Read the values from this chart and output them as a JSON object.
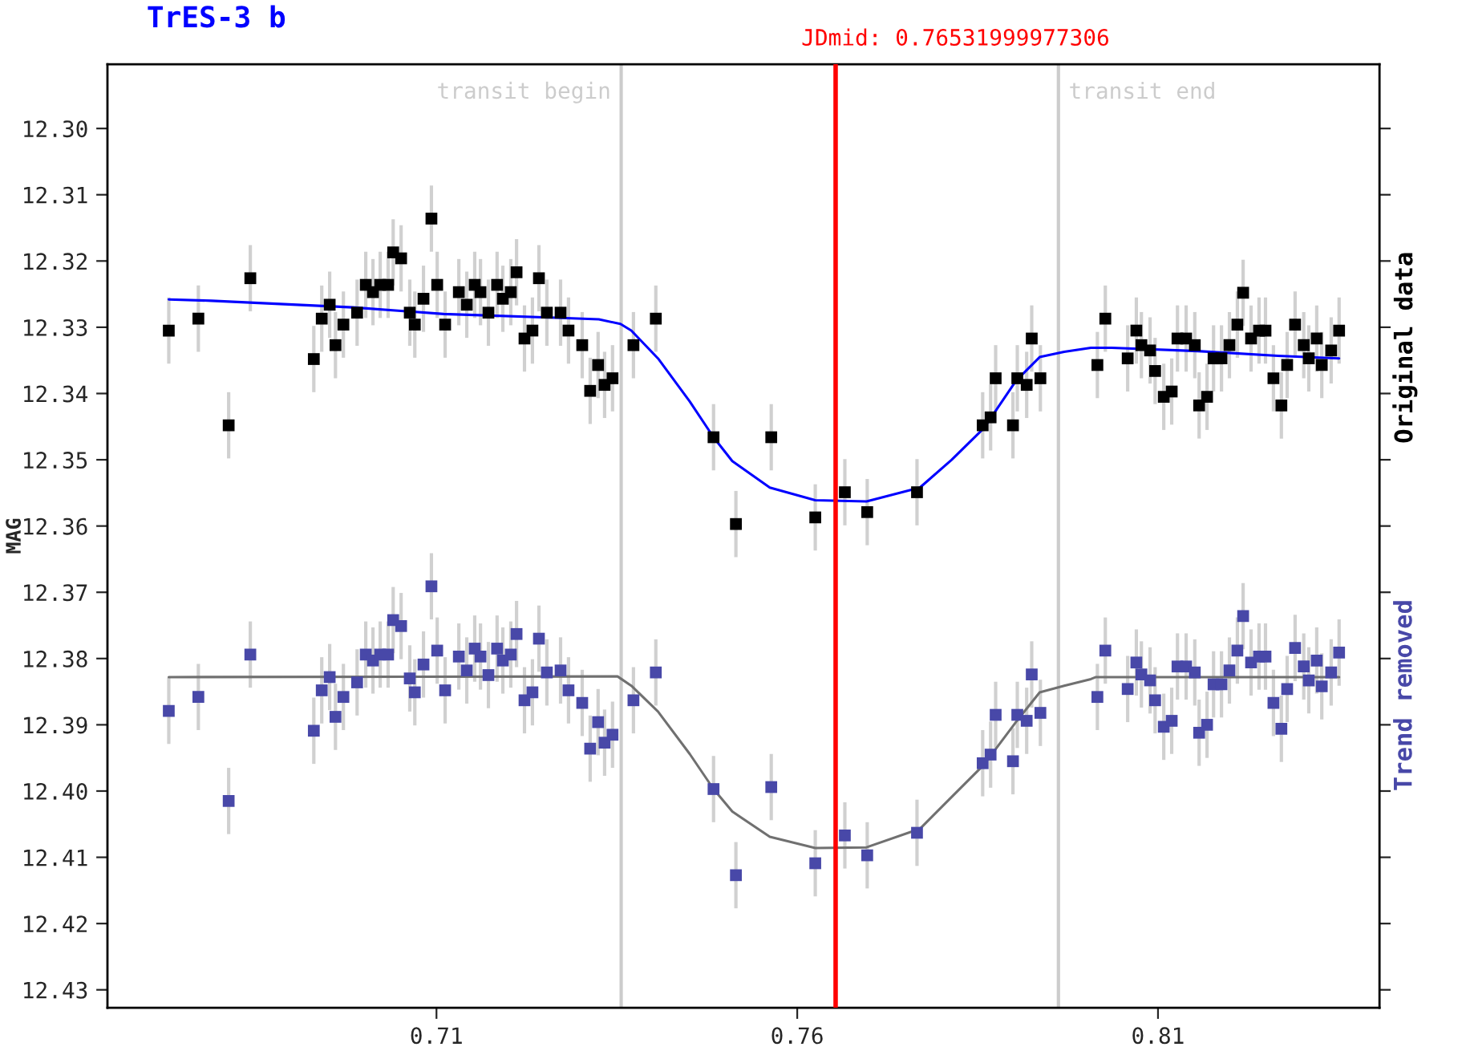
{
  "chart_data": {
    "type": "scatter",
    "title": "TrES-3 b",
    "ylabel": "MAG",
    "xlim": [
      0.6644,
      0.8407
    ],
    "xticks": [
      0.71,
      0.76,
      0.81
    ],
    "ylim": [
      12.4327,
      12.2903
    ],
    "yticks": [
      {
        "value": 12.3,
        "label": "12.30"
      },
      {
        "value": 12.31,
        "label": "12.31"
      },
      {
        "value": 12.32,
        "label": "12.32"
      },
      {
        "value": 12.33,
        "label": "12.33"
      },
      {
        "value": 12.34,
        "label": "12.34"
      },
      {
        "value": 12.35,
        "label": "12.35"
      },
      {
        "value": 12.36,
        "label": "12.36"
      },
      {
        "value": 12.37,
        "label": "12.37"
      },
      {
        "value": 12.38,
        "label": "12.38"
      },
      {
        "value": 12.39,
        "label": "12.39"
      },
      {
        "value": 12.4,
        "label": "12.40"
      },
      {
        "value": 12.41,
        "label": "12.41"
      },
      {
        "value": 12.42,
        "label": "12.42"
      },
      {
        "value": 12.43,
        "label": "12.43"
      }
    ],
    "grid": false,
    "legend": false,
    "marker": "square",
    "ref_lines": [
      {
        "axis": "x",
        "value": 0.7356,
        "label": "transit begin",
        "color": "#cccccc"
      },
      {
        "axis": "x",
        "value": 0.76531999977306,
        "label": "JDmid: 0.76531999977306",
        "color": "#ff0000"
      },
      {
        "axis": "x",
        "value": 0.7962,
        "label": "transit end",
        "color": "#cccccc"
      }
    ],
    "x": [
      0.6729,
      0.677,
      0.6812,
      0.6842,
      0.693,
      0.6941,
      0.6952,
      0.696,
      0.6971,
      0.699,
      0.7002,
      0.7012,
      0.7022,
      0.7033,
      0.704,
      0.7051,
      0.7063,
      0.707,
      0.7082,
      0.7093,
      0.7101,
      0.7112,
      0.7131,
      0.7142,
      0.7153,
      0.7161,
      0.7172,
      0.7184,
      0.7192,
      0.7203,
      0.7211,
      0.7222,
      0.7233,
      0.7242,
      0.7253,
      0.7272,
      0.7283,
      0.7302,
      0.7313,
      0.7324,
      0.7333,
      0.7344,
      0.7373,
      0.7404,
      0.7484,
      0.7515,
      0.7564,
      0.7625,
      0.7666,
      0.7697,
      0.7766,
      0.7857,
      0.7868,
      0.7875,
      0.7899,
      0.7905,
      0.7918,
      0.7925,
      0.7937,
      0.8016,
      0.8027,
      0.8058,
      0.807,
      0.8077,
      0.8089,
      0.8096,
      0.8108,
      0.8119,
      0.8127,
      0.8139,
      0.8151,
      0.8157,
      0.8168,
      0.8177,
      0.8188,
      0.8199,
      0.821,
      0.8218,
      0.8229,
      0.824,
      0.8249,
      0.826,
      0.8271,
      0.8279,
      0.829,
      0.8302,
      0.8309,
      0.832,
      0.8327,
      0.834,
      0.8351
    ],
    "series": [
      {
        "name": "Original data",
        "color": "#000000",
        "values": [
          12.3305,
          12.3287,
          12.3448,
          12.3226,
          12.3348,
          12.3287,
          12.3266,
          12.3327,
          12.3296,
          12.3278,
          12.3236,
          12.3247,
          12.3236,
          12.3236,
          12.3187,
          12.3196,
          12.3278,
          12.3296,
          12.3257,
          12.3136,
          12.3236,
          12.3296,
          12.3247,
          12.3266,
          12.3236,
          12.3247,
          12.3278,
          12.3236,
          12.3257,
          12.3247,
          12.3217,
          12.3317,
          12.3305,
          12.3226,
          12.3278,
          12.3278,
          12.3305,
          12.3327,
          12.3396,
          12.3357,
          12.3387,
          12.3377,
          12.3327,
          12.3287,
          12.3466,
          12.3597,
          12.3466,
          12.3587,
          12.3549,
          12.3579,
          12.3549,
          12.3448,
          12.3436,
          12.3377,
          12.3448,
          12.3377,
          12.3387,
          12.3317,
          12.3377,
          12.3357,
          12.3287,
          12.3347,
          12.3305,
          12.3327,
          12.3335,
          12.3366,
          12.3405,
          12.3397,
          12.3317,
          12.3317,
          12.3327,
          12.3418,
          12.3405,
          12.3347,
          12.3347,
          12.3327,
          12.3296,
          12.3248,
          12.3317,
          12.3305,
          12.3305,
          12.3377,
          12.3418,
          12.3357,
          12.3296,
          12.3327,
          12.3347,
          12.3317,
          12.3357,
          12.3335,
          12.3305
        ],
        "errors": [
          0.005,
          0.005,
          0.005,
          0.005,
          0.005,
          0.005,
          0.005,
          0.005,
          0.005,
          0.005,
          0.005,
          0.005,
          0.005,
          0.005,
          0.005,
          0.005,
          0.005,
          0.005,
          0.005,
          0.005,
          0.005,
          0.005,
          0.005,
          0.005,
          0.005,
          0.005,
          0.005,
          0.005,
          0.005,
          0.005,
          0.005,
          0.005,
          0.005,
          0.005,
          0.005,
          0.005,
          0.005,
          0.005,
          0.005,
          0.005,
          0.005,
          0.005,
          0.005,
          0.005,
          0.005,
          0.005,
          0.005,
          0.005,
          0.005,
          0.005,
          0.005,
          0.005,
          0.005,
          0.005,
          0.005,
          0.005,
          0.005,
          0.005,
          0.005,
          0.005,
          0.005,
          0.005,
          0.005,
          0.005,
          0.005,
          0.005,
          0.005,
          0.005,
          0.005,
          0.005,
          0.005,
          0.005,
          0.005,
          0.005,
          0.005,
          0.005,
          0.005,
          0.005,
          0.005,
          0.005,
          0.005,
          0.005,
          0.005,
          0.005,
          0.005,
          0.005,
          0.005,
          0.005,
          0.005,
          0.005,
          0.005
        ]
      },
      {
        "name": "Trend removed",
        "color": "#4848a8",
        "values": [
          12.3879,
          12.3858,
          12.4015,
          12.3794,
          12.3909,
          12.3848,
          12.3828,
          12.3888,
          12.3858,
          12.3836,
          12.3794,
          12.3803,
          12.3794,
          12.3794,
          12.3742,
          12.3751,
          12.383,
          12.3851,
          12.3809,
          12.3691,
          12.3788,
          12.3848,
          12.3797,
          12.3818,
          12.3785,
          12.3797,
          12.3825,
          12.3785,
          12.3803,
          12.3794,
          12.3763,
          12.3863,
          12.3851,
          12.377,
          12.3821,
          12.3818,
          12.3848,
          12.3867,
          12.3936,
          12.3896,
          12.3927,
          12.3915,
          12.3863,
          12.3821,
          12.3997,
          12.4127,
          12.3994,
          12.4109,
          12.4067,
          12.4097,
          12.4063,
          12.3958,
          12.3945,
          12.3885,
          12.3955,
          12.3885,
          12.3894,
          12.3824,
          12.3882,
          12.3858,
          12.3788,
          12.3846,
          12.3806,
          12.3824,
          12.3833,
          12.3863,
          12.3903,
          12.3894,
          12.3812,
          12.3812,
          12.3821,
          12.3912,
          12.39,
          12.3839,
          12.3839,
          12.3818,
          12.3788,
          12.3736,
          12.3806,
          12.3797,
          12.3797,
          12.3867,
          12.3906,
          12.3846,
          12.3784,
          12.3812,
          12.3833,
          12.3803,
          12.3842,
          12.3821,
          12.3791
        ],
        "errors": [
          0.005,
          0.005,
          0.005,
          0.005,
          0.005,
          0.005,
          0.005,
          0.005,
          0.005,
          0.005,
          0.005,
          0.005,
          0.005,
          0.005,
          0.005,
          0.005,
          0.005,
          0.005,
          0.005,
          0.005,
          0.005,
          0.005,
          0.005,
          0.005,
          0.005,
          0.005,
          0.005,
          0.005,
          0.005,
          0.005,
          0.005,
          0.005,
          0.005,
          0.005,
          0.005,
          0.005,
          0.005,
          0.005,
          0.005,
          0.005,
          0.005,
          0.005,
          0.005,
          0.005,
          0.005,
          0.005,
          0.005,
          0.005,
          0.005,
          0.005,
          0.005,
          0.005,
          0.005,
          0.005,
          0.005,
          0.005,
          0.005,
          0.005,
          0.005,
          0.005,
          0.005,
          0.005,
          0.005,
          0.005,
          0.005,
          0.005,
          0.005,
          0.005,
          0.005,
          0.005,
          0.005,
          0.005,
          0.005,
          0.005,
          0.005,
          0.005,
          0.005,
          0.005,
          0.005,
          0.005,
          0.005,
          0.005,
          0.005,
          0.005,
          0.005,
          0.005,
          0.005,
          0.005,
          0.005,
          0.005,
          0.005
        ]
      },
      {
        "type": "line",
        "color": "#0000ff",
        "marker": "none",
        "x": [
          0.6729,
          0.6788,
          0.6984,
          0.711,
          0.7273,
          0.7325,
          0.7355,
          0.737,
          0.7407,
          0.7451,
          0.7484,
          0.751,
          0.7562,
          0.7625,
          0.7696,
          0.777,
          0.7814,
          0.7859,
          0.7903,
          0.7936,
          0.797,
          0.8007,
          0.8036,
          0.8155,
          0.8266,
          0.8351
        ],
        "values": [
          12.3258,
          12.326,
          12.327,
          12.328,
          12.3286,
          12.3288,
          12.3295,
          12.3305,
          12.3347,
          12.3412,
          12.3466,
          12.3502,
          12.3542,
          12.3561,
          12.3563,
          12.3542,
          12.35,
          12.3452,
          12.3381,
          12.3345,
          12.3337,
          12.3331,
          12.3331,
          12.3336,
          12.3343,
          12.3347
        ]
      },
      {
        "type": "line",
        "color": "#707070",
        "marker": "none",
        "x": [
          0.6729,
          0.7351,
          0.737,
          0.7407,
          0.7451,
          0.7484,
          0.751,
          0.7562,
          0.7625,
          0.7696,
          0.777,
          0.7814,
          0.7859,
          0.7903,
          0.7936,
          0.797,
          0.8007,
          0.8014,
          0.8351
        ],
        "values": [
          12.3828,
          12.3827,
          12.3841,
          12.388,
          12.3944,
          12.3997,
          12.4031,
          12.4069,
          12.4086,
          12.4085,
          12.4057,
          12.4009,
          12.396,
          12.3896,
          12.3851,
          12.3841,
          12.3831,
          12.3828,
          12.3828
        ]
      }
    ]
  }
}
